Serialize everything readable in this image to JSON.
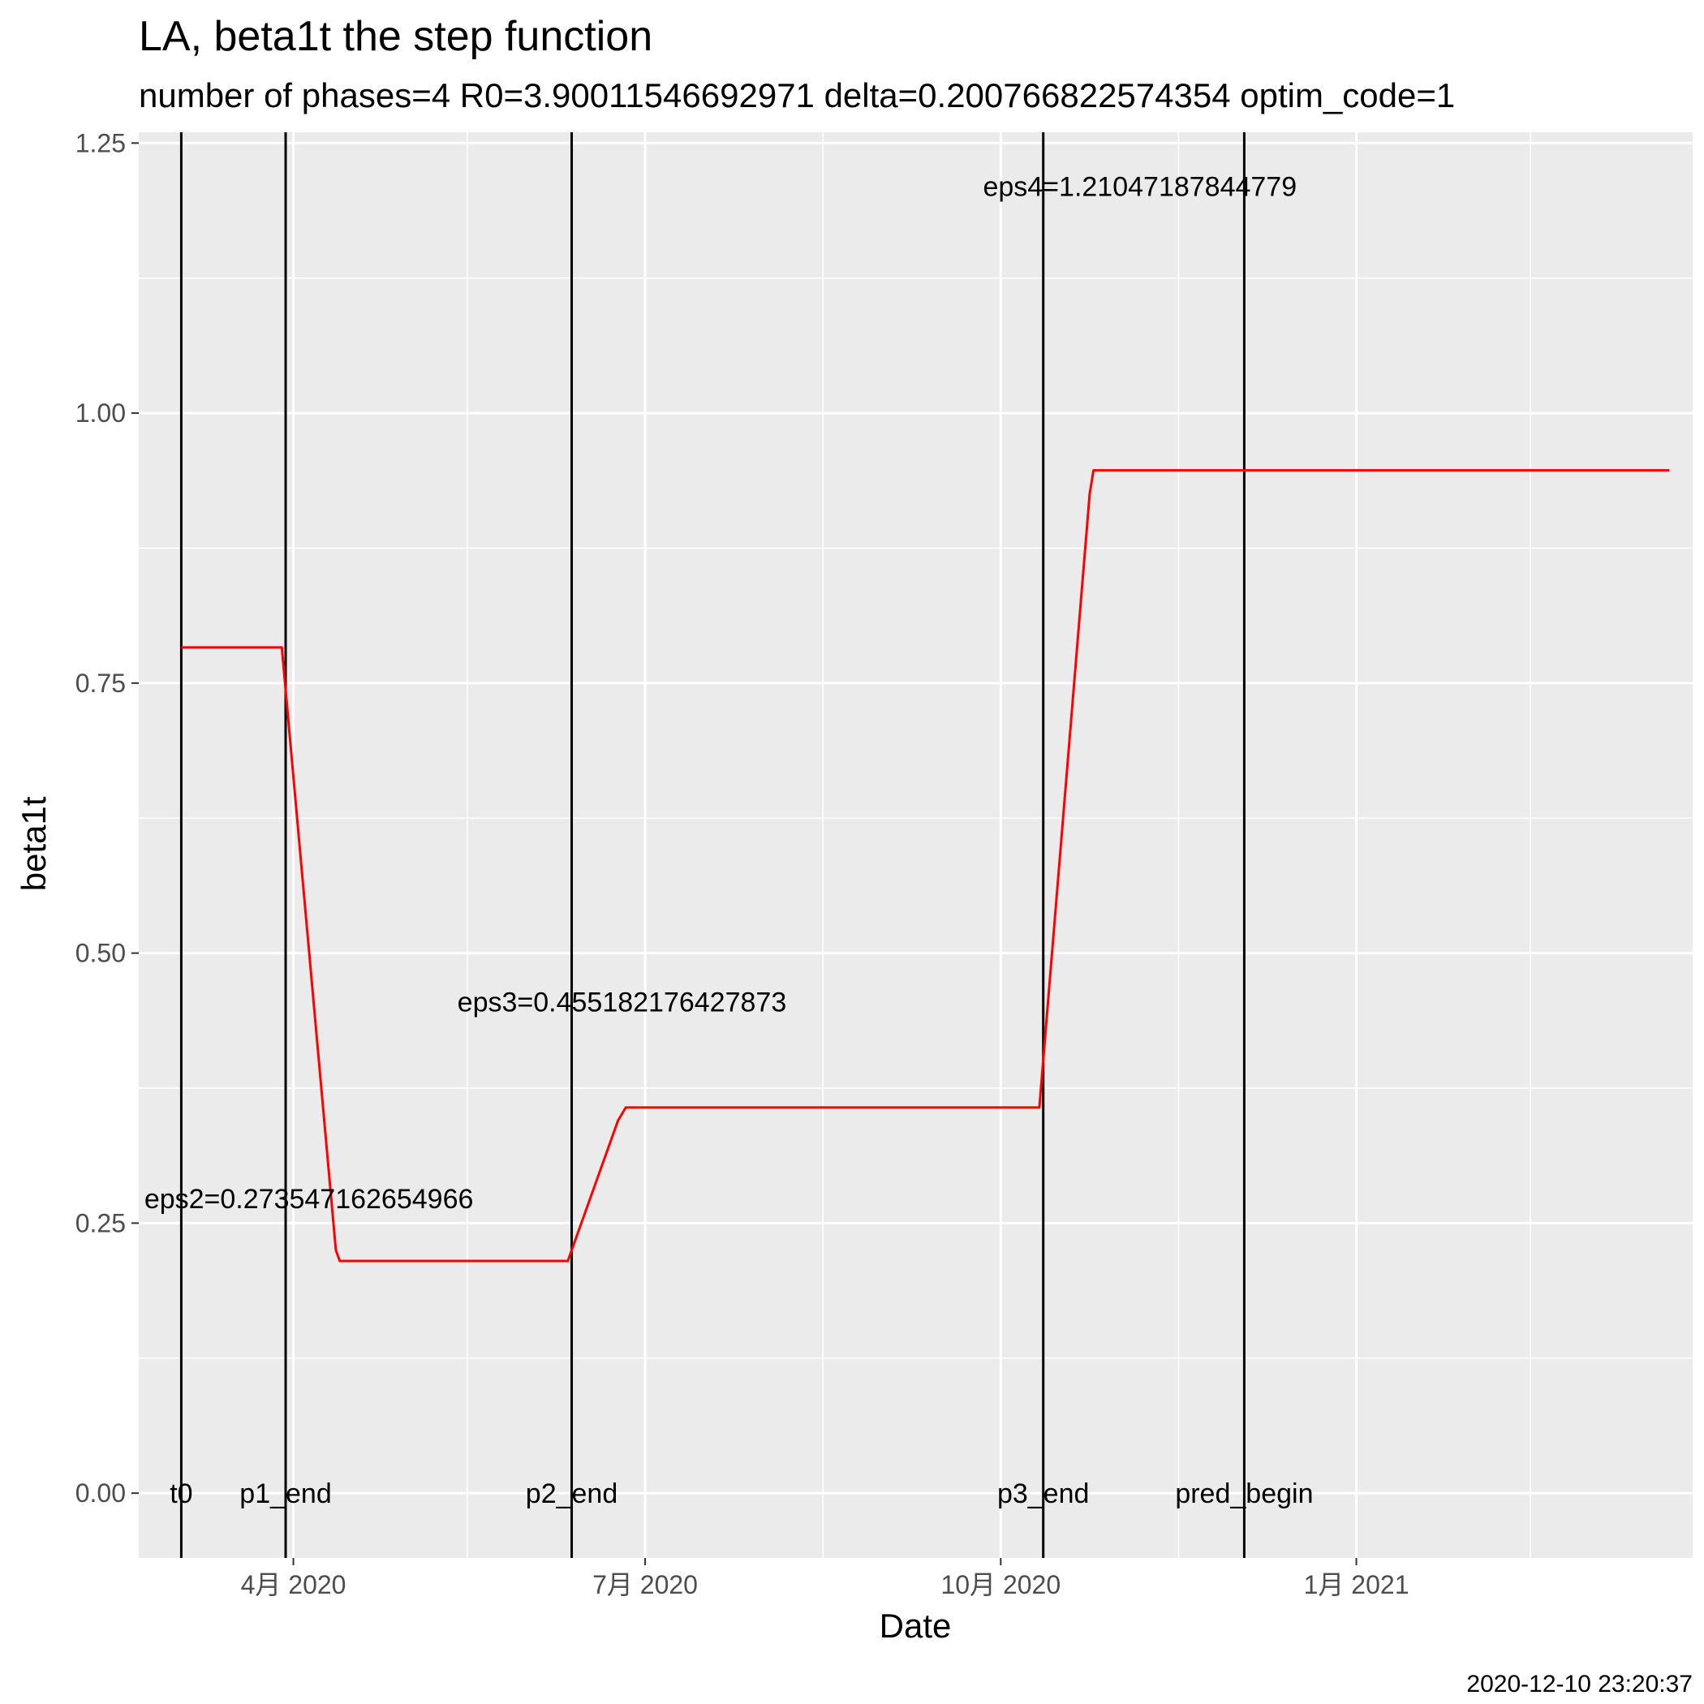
{
  "chart_data": {
    "type": "line",
    "title": "LA, beta1t the step function",
    "subtitle": "number of phases=4   R0=3.90011546692971   delta=0.200766822574354   optim_code=1",
    "xlabel": "Date",
    "ylabel": "beta1t",
    "caption": "2020-12-10 23:20:37",
    "x_range": [
      "2020-02-21",
      "2021-03-29"
    ],
    "ylim": [
      -0.06,
      1.26
    ],
    "y_ticks": [
      0.0,
      0.25,
      0.5,
      0.75,
      1.0,
      1.25
    ],
    "y_tick_labels": [
      "0.00",
      "0.25",
      "0.50",
      "0.75",
      "1.00",
      "1.25"
    ],
    "x_ticks": [
      {
        "date": "2020-04-01",
        "label": "4月 2020"
      },
      {
        "date": "2020-07-01",
        "label": "7月 2020"
      },
      {
        "date": "2020-10-01",
        "label": "10月 2020"
      },
      {
        "date": "2021-01-01",
        "label": "1月 2021"
      }
    ],
    "x_minor_ticks": [
      "2020-02-15",
      "2020-05-16",
      "2020-08-16",
      "2020-11-16",
      "2021-02-15"
    ],
    "grid": true,
    "series": [
      {
        "color": "#ff0000",
        "points": [
          {
            "x": "2020-03-03",
            "y": 0.783
          },
          {
            "x": "2020-03-29",
            "y": 0.783
          },
          {
            "x": "2020-04-12",
            "y": 0.225
          },
          {
            "x": "2020-04-13",
            "y": 0.215
          },
          {
            "x": "2020-06-11",
            "y": 0.215
          },
          {
            "x": "2020-06-24",
            "y": 0.345
          },
          {
            "x": "2020-06-26",
            "y": 0.357
          },
          {
            "x": "2020-10-11",
            "y": 0.357
          },
          {
            "x": "2020-10-24",
            "y": 0.925
          },
          {
            "x": "2020-10-25",
            "y": 0.947
          },
          {
            "x": "2021-03-23",
            "y": 0.947
          }
        ]
      }
    ],
    "vlines": [
      {
        "x": "2020-03-03",
        "label": "t0"
      },
      {
        "x": "2020-03-30",
        "label": "p1_end"
      },
      {
        "x": "2020-06-12",
        "label": "p2_end"
      },
      {
        "x": "2020-10-12",
        "label": "p3_end"
      },
      {
        "x": "2020-12-03",
        "label": "pred_begin"
      }
    ],
    "annotations": [
      {
        "text": "eps2=0.273547162654966",
        "x": "2020-04-05",
        "y": 0.273
      },
      {
        "text": "eps3=0.455182176427873",
        "x": "2020-06-25",
        "y": 0.455
      },
      {
        "text": "eps4=1.21047187844779",
        "x": "2020-11-06",
        "y": 1.21
      }
    ]
  }
}
